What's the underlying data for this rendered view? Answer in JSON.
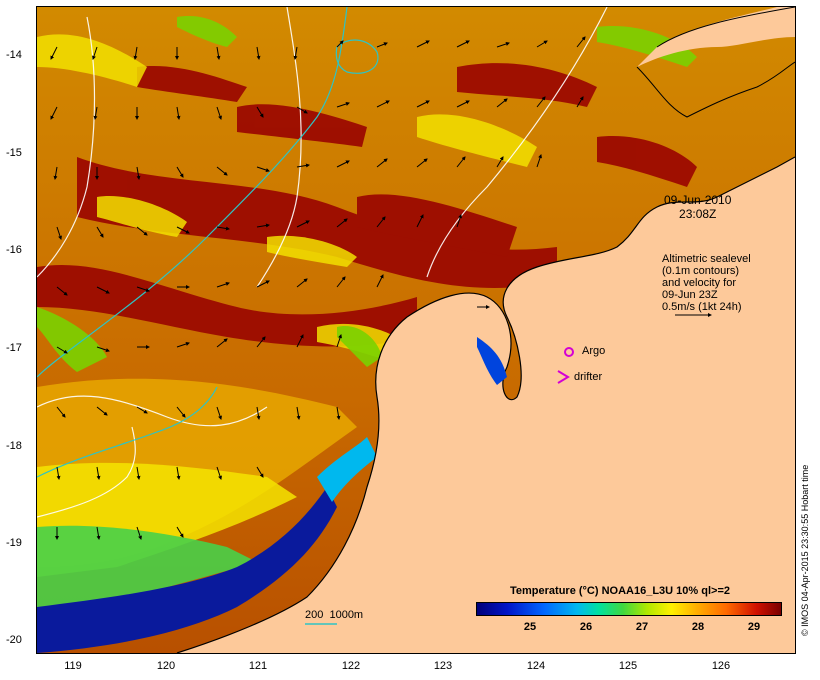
{
  "map": {
    "date_line1": "09-Jun-2010",
    "date_line2": "23:08Z",
    "legend_text": [
      "Altimetric sealevel",
      "(0.1m contours)",
      "and velocity for",
      "09-Jun 23Z",
      "0.5m/s (1kt 24h)"
    ],
    "argo_label": "Argo",
    "drifter_label": "drifter",
    "depth_label": "200  1000m",
    "credit": "© IMOS 04-Apr-2015 23:30:55 Hobart time",
    "y_ticks": [
      "-14",
      "-15",
      "-16",
      "-17",
      "-18",
      "-19",
      "-20"
    ],
    "x_ticks": [
      "119",
      "120",
      "121",
      "122",
      "123",
      "124",
      "125",
      "126"
    ],
    "colorbar_title": "Temperature (°C) NOAA16_L3U 10% ql>=2",
    "colorbar_ticks": [
      "25",
      "26",
      "27",
      "28",
      "29"
    ],
    "colors": {
      "land": "#fdc99a",
      "warm": "#c86400",
      "hot": "#9c0a00",
      "cool": "#0a1a9c",
      "contour": "#ffffff",
      "isobath": "#2ec4c4",
      "argo": "#d400d4"
    }
  }
}
